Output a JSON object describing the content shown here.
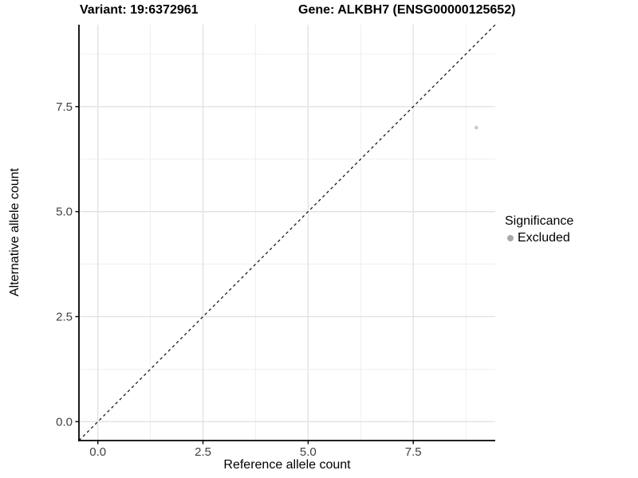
{
  "chart_data": {
    "type": "scatter",
    "titles": {
      "left": "Variant: 19:6372961",
      "right": "Gene: ALKBH7 (ENSG00000125652)"
    },
    "xlabel": "Reference allele count",
    "ylabel": "Alternative allele count",
    "xlim": [
      -0.45,
      9.45
    ],
    "ylim": [
      -0.45,
      9.45
    ],
    "axis_breaks": {
      "values": [
        0,
        2.5,
        5,
        7.5
      ],
      "labels": [
        "0.0",
        "2.5",
        "5.0",
        "7.5"
      ],
      "minor": [
        1.25,
        3.75,
        6.25,
        8.75
      ]
    },
    "grid": true,
    "identity_line": {
      "slope": 1,
      "intercept": 0,
      "style": "dashed",
      "color": "#1a1a1a"
    },
    "series": [
      {
        "name": "Excluded",
        "color": "#c8c8c8",
        "points": [
          {
            "x": 9,
            "y": 7
          }
        ]
      }
    ],
    "legend": {
      "title": "Significance",
      "position": "right",
      "entries": [
        {
          "label": "Excluded",
          "swatch_color": "#a9a9a9"
        }
      ]
    },
    "style": {
      "grid_major_color": "#e2e2e2",
      "grid_minor_color": "#ececec",
      "axis_line_color": "#000000",
      "tick_label_color": "#404040",
      "point_radius": 2.3,
      "background": "#ffffff"
    }
  }
}
